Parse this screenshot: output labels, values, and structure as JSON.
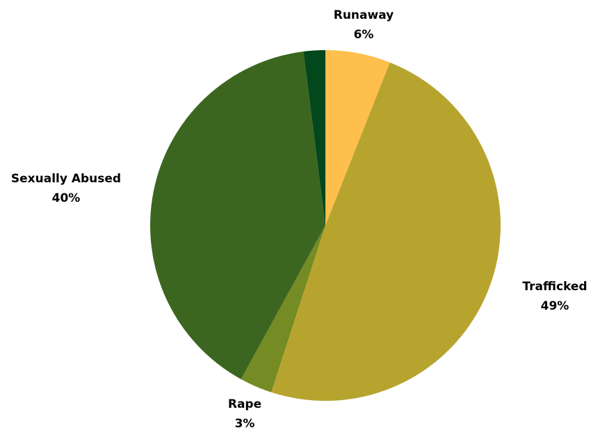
{
  "chart_data": {
    "type": "pie",
    "title": "",
    "start_angle_deg": 0,
    "direction": "clockwise",
    "slices": [
      {
        "label": "Runaway",
        "value": 6,
        "value_label": "6%",
        "color": "#FFBF4C"
      },
      {
        "label": "Trafficked",
        "value": 49,
        "value_label": "49%",
        "color": "#B7A42F"
      },
      {
        "label": "Rape",
        "value": 3,
        "value_label": "3%",
        "color": "#758B24"
      },
      {
        "label": "Sexually Abused",
        "value": 40,
        "value_label": "40%",
        "color": "#3C661F"
      },
      {
        "label": "",
        "value": 2,
        "value_label": "",
        "color": "#03471D"
      }
    ],
    "legend": "none"
  }
}
